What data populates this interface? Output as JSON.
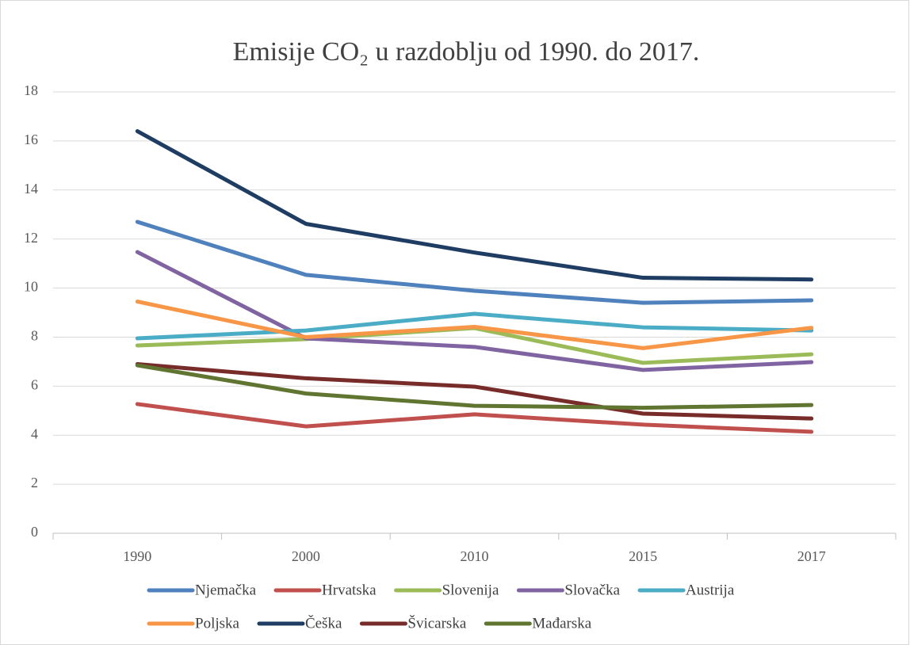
{
  "chart_data": {
    "type": "line",
    "title": "Emisije CO₂ u razdoblju od 1990. do 2017.",
    "categories": [
      "1990",
      "2000",
      "2010",
      "2015",
      "2017"
    ],
    "ylim": [
      0,
      18
    ],
    "yticks": [
      0,
      2,
      4,
      6,
      8,
      10,
      12,
      14,
      16,
      18
    ],
    "grid": true,
    "legend": "bottom",
    "series": [
      {
        "name": "Njemačka",
        "color": "#4f81bd",
        "values": [
          12.7,
          10.54,
          9.89,
          9.4,
          9.5
        ]
      },
      {
        "name": "Hrvatska",
        "color": "#c0504d",
        "values": [
          5.27,
          4.36,
          4.85,
          4.43,
          4.14
        ]
      },
      {
        "name": "Slovenija",
        "color": "#9bbb59",
        "values": [
          7.66,
          7.92,
          8.37,
          6.95,
          7.3
        ]
      },
      {
        "name": "Slovačka",
        "color": "#8064a2",
        "values": [
          11.47,
          7.95,
          7.6,
          6.66,
          6.98
        ]
      },
      {
        "name": "Austrija",
        "color": "#4bacc6",
        "values": [
          7.95,
          8.27,
          8.95,
          8.4,
          8.27
        ]
      },
      {
        "name": "Poljska",
        "color": "#f79646",
        "values": [
          9.45,
          8.0,
          8.42,
          7.55,
          8.38
        ]
      },
      {
        "name": "Češka",
        "color": "#1f3d63",
        "values": [
          16.4,
          12.62,
          11.45,
          10.42,
          10.35
        ]
      },
      {
        "name": "Švicarska",
        "color": "#772c2a",
        "values": [
          6.9,
          6.32,
          5.98,
          4.88,
          4.68
        ]
      },
      {
        "name": "Mađarska",
        "color": "#5f7530",
        "values": [
          6.85,
          5.7,
          5.2,
          5.12,
          5.23
        ]
      }
    ]
  }
}
